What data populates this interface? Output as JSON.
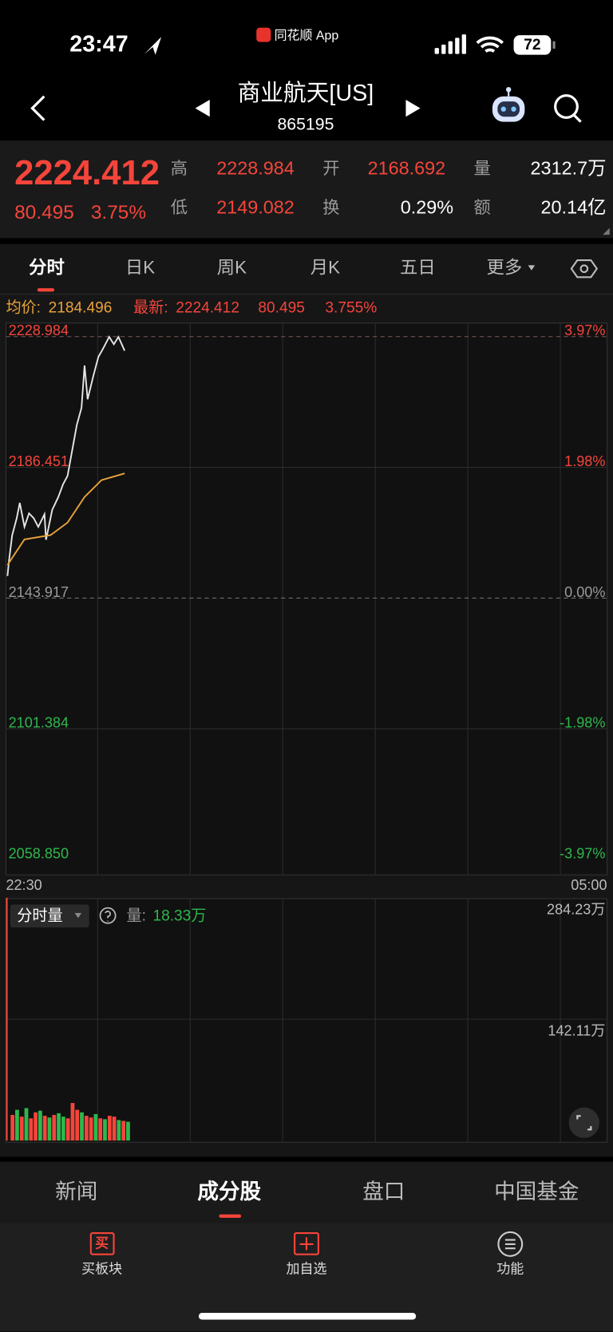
{
  "status": {
    "time": "23:47",
    "app": "同花顺 App",
    "battery": "72"
  },
  "header": {
    "title": "商业航天[US]",
    "code": "865195"
  },
  "quote": {
    "price": "2224.412",
    "change": "80.495",
    "change_pct": "3.75%",
    "high_label": "高",
    "high": "2228.984",
    "open_label": "开",
    "open": "2168.692",
    "volume_label": "量",
    "volume": "2312.7万",
    "low_label": "低",
    "low": "2149.082",
    "turnover_label": "换",
    "turnover": "0.29%",
    "amount_label": "额",
    "amount": "20.14亿"
  },
  "tabs": [
    "分时",
    "日K",
    "周K",
    "月K",
    "五日",
    "更多"
  ],
  "info": {
    "avg_label": "均价:",
    "avg": "2184.496",
    "latest_label": "最新:",
    "latest": "2224.412",
    "change": "80.495",
    "change_pct": "3.755%"
  },
  "chart_data": {
    "type": "line",
    "xlim": [
      0,
      390
    ],
    "x_labels": [
      "22:30",
      "05:00"
    ],
    "ylim": [
      2058.85,
      2228.984
    ],
    "yticks": [
      2228.984,
      2186.451,
      2143.917,
      2101.384,
      {
        "value": 2058.85,
        "label": "2058.850"
      }
    ],
    "right_labels": [
      "3.97%",
      "1.98%",
      "0.00%",
      "-1.98%",
      "-3.97%"
    ],
    "grid": true,
    "series": [
      {
        "color": "#e6e6e6",
        "x": [
          1,
          2,
          4,
          7,
          9,
          12,
          15,
          18,
          21,
          25,
          26,
          30,
          34,
          37,
          40,
          42,
          46,
          49,
          51,
          53,
          57,
          60,
          63,
          67,
          70,
          73,
          77
        ],
        "values": [
          2151.1,
          2156.1,
          2164.3,
          2169.9,
          2174.9,
          2167.1,
          2171.5,
          2169.9,
          2167.1,
          2171.2,
          2162.9,
          2172.6,
          2176.8,
          2180.9,
          2183.7,
          2189.2,
          2200.3,
          2205.8,
          2219.6,
          2208.6,
          2216.8,
          2222.4,
          2225.1,
          2228.9,
          2226.5,
          2228.9,
          2224.412
        ]
      },
      {
        "color": "#e8a33c",
        "x": [
          1,
          12,
          29,
          40,
          51,
          62,
          77
        ],
        "values": [
          2154.7,
          2163.0,
          2164.4,
          2168.5,
          2176.8,
          2182.3,
          2184.496
        ]
      }
    ]
  },
  "volume_panel": {
    "selector": "分时量",
    "label": "量:",
    "value": "18.33万",
    "ylim": [
      0,
      284.23
    ],
    "yticks": [
      {
        "value": 284.23,
        "label": "284.23万"
      },
      {
        "value": 142.11,
        "label": "142.11万"
      }
    ],
    "x": [
      0,
      3,
      6,
      9,
      12,
      15,
      18,
      21,
      24,
      27,
      30,
      33,
      36,
      39,
      42,
      45,
      48,
      51,
      54,
      57,
      60,
      63,
      66,
      69,
      72,
      75,
      78
    ],
    "values": [
      284.23,
      30,
      36,
      28,
      38,
      26,
      33,
      35,
      29,
      27,
      30,
      32,
      28,
      26,
      44,
      36,
      33,
      29,
      27,
      31,
      26,
      25,
      29,
      28,
      24,
      23,
      22
    ],
    "colors": [
      "#f5453b",
      "#f5453b",
      "#2db84d",
      "#f5453b",
      "#2db84d",
      "#f5453b",
      "#f5453b",
      "#2db84d",
      "#f5453b",
      "#2db84d",
      "#f5453b",
      "#2db84d",
      "#2db84d",
      "#f5453b",
      "#f5453b",
      "#f5453b",
      "#2db84d",
      "#f5453b",
      "#f5453b",
      "#2db84d",
      "#f5453b",
      "#2db84d",
      "#f5453b",
      "#f5453b",
      "#2db84d",
      "#f5453b",
      "#2db84d"
    ]
  },
  "bottom_tabs": [
    "新闻",
    "成分股",
    "盘口",
    "中国基金"
  ],
  "toolbar": {
    "buy_icon": "买",
    "items": [
      "买板块",
      "加自选",
      "功能"
    ]
  }
}
